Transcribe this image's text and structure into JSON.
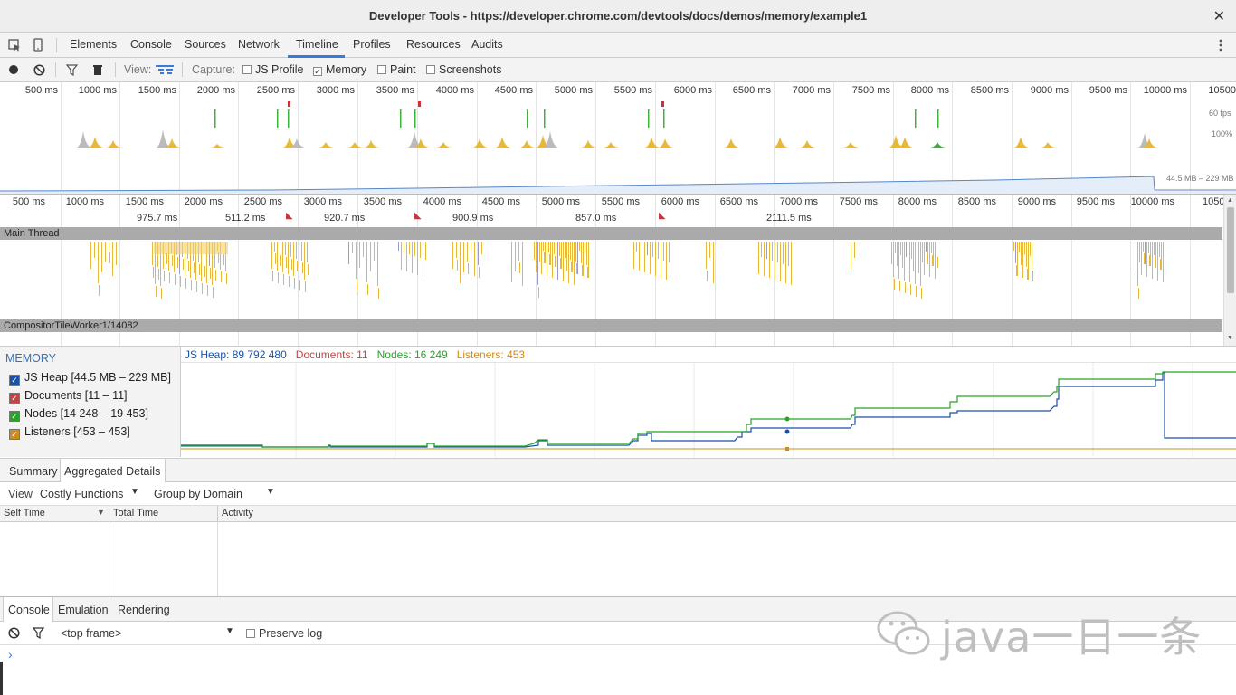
{
  "window": {
    "title": "Developer Tools - https://developer.chrome.com/devtools/docs/demos/memory/example1",
    "close": "✕"
  },
  "tabs": [
    {
      "label": "Elements"
    },
    {
      "label": "Console"
    },
    {
      "label": "Sources"
    },
    {
      "label": "Network"
    },
    {
      "label": "Timeline",
      "active": true
    },
    {
      "label": "Profiles"
    },
    {
      "label": "Resources"
    },
    {
      "label": "Audits"
    }
  ],
  "toolbar": {
    "view_label": "View:",
    "capture_label": "Capture:",
    "capture_options": [
      {
        "label": "JS Profile",
        "checked": false
      },
      {
        "label": "Memory",
        "checked": true
      },
      {
        "label": "Paint",
        "checked": false
      },
      {
        "label": "Screenshots",
        "checked": false
      }
    ]
  },
  "overview": {
    "ticks": [
      "500 ms",
      "1000 ms",
      "1500 ms",
      "2000 ms",
      "2500 ms",
      "3000 ms",
      "3500 ms",
      "4000 ms",
      "4500 ms",
      "5000 ms",
      "5500 ms",
      "6000 ms",
      "6500 ms",
      "7000 ms",
      "7500 ms",
      "8000 ms",
      "8500 ms",
      "9000 ms",
      "9500 ms",
      "10000 ms",
      "10500"
    ],
    "fps_label": "60 fps",
    "cpu_label": "100%",
    "memory_range": "44.5 MB – 229 MB"
  },
  "flame": {
    "ticks": [
      "500 ms",
      "1000 ms",
      "1500 ms",
      "2000 ms",
      "2500 ms",
      "3000 ms",
      "3500 ms",
      "4000 ms",
      "4500 ms",
      "5000 ms",
      "5500 ms",
      "6000 ms",
      "6500 ms",
      "7000 ms",
      "7500 ms",
      "8000 ms",
      "8500 ms",
      "9000 ms",
      "9500 ms",
      "10000 ms",
      "1050"
    ],
    "frame_durations": [
      "975.7 ms",
      "511.2 ms",
      "920.7 ms",
      "900.9 ms",
      "857.0 ms",
      "2111.5 ms"
    ],
    "main_thread": "Main Thread",
    "compositor_thread": "CompositorTileWorker1/14082"
  },
  "memory": {
    "header": "MEMORY",
    "counters": [
      {
        "label": "JS Heap",
        "range": "[44.5 MB – 229 MB]",
        "color": "#1a52a8"
      },
      {
        "label": "Documents",
        "range": "[11 – 11]",
        "color": "#c04545"
      },
      {
        "label": "Nodes",
        "range": "[14 248 – 19 453]",
        "color": "#29a329"
      },
      {
        "label": "Listeners",
        "range": "[453 – 453]",
        "color": "#cc8c1f"
      }
    ],
    "readout": {
      "js_heap": "JS Heap: 89 792 480",
      "documents": "Documents: 11",
      "nodes": "Nodes: 16 249",
      "listeners": "Listeners: 453"
    }
  },
  "details": {
    "tabs": [
      {
        "label": "Summary"
      },
      {
        "label": "Aggregated Details",
        "active": true
      }
    ],
    "view_label": "View",
    "view_select": "Costly Functions",
    "group_select": "Group by Domain",
    "columns": [
      "Self Time",
      "Total Time",
      "Activity"
    ]
  },
  "drawer": {
    "tabs": [
      {
        "label": "Console",
        "active": true
      },
      {
        "label": "Emulation"
      },
      {
        "label": "Rendering"
      }
    ],
    "frame_select": "<top frame>",
    "preserve_log": "Preserve log",
    "prompt": "›"
  },
  "watermark": "java一日一条"
}
